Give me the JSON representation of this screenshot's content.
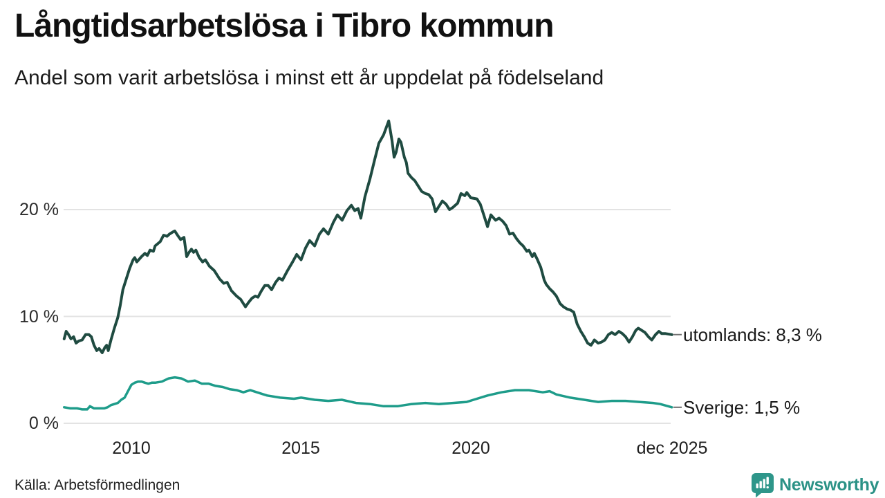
{
  "header": {
    "title": "Långtidsarbetslösa i Tibro kommun",
    "subtitle": "Andel som varit arbetslösa i minst ett år uppdelat på födelseland"
  },
  "source": {
    "text": "Källa: Arbetsförmedlingen"
  },
  "branding": {
    "name": "Newsworthy",
    "brand_color": "#2e968a"
  },
  "chart_data": {
    "type": "line",
    "title": "Långtidsarbetslösa i Tibro kommun",
    "subtitle": "Andel som varit arbetslösa i minst ett år uppdelat på födelseland",
    "xlabel": "",
    "ylabel": "",
    "xlim": [
      2008.0,
      2025.95
    ],
    "ylim": [
      0,
      29.3
    ],
    "grid": true,
    "legend_position": "right-end-labels",
    "y_ticks": [
      {
        "label": "0 %",
        "value": 0
      },
      {
        "label": "10 %",
        "value": 10
      },
      {
        "label": "20 %",
        "value": 20
      }
    ],
    "x_ticks": [
      {
        "label": "2010",
        "year": 2010
      },
      {
        "label": "2015",
        "year": 2015
      },
      {
        "label": "2020",
        "year": 2020
      },
      {
        "label": "dec 2025",
        "year": 2025.92
      }
    ],
    "series": [
      {
        "name": "utomlands",
        "label": "utomlands: 8,3 %",
        "color": "#1f4b41",
        "width": 4,
        "last_value": 8.3,
        "points": [
          [
            2008.02,
            7.9
          ],
          [
            2008.08,
            8.6
          ],
          [
            2008.15,
            8.3
          ],
          [
            2008.22,
            7.9
          ],
          [
            2008.3,
            8.1
          ],
          [
            2008.37,
            7.5
          ],
          [
            2008.45,
            7.7
          ],
          [
            2008.55,
            7.8
          ],
          [
            2008.65,
            8.3
          ],
          [
            2008.75,
            8.3
          ],
          [
            2008.82,
            8.1
          ],
          [
            2008.9,
            7.3
          ],
          [
            2008.98,
            6.8
          ],
          [
            2009.05,
            7.0
          ],
          [
            2009.14,
            6.6
          ],
          [
            2009.22,
            7.1
          ],
          [
            2009.27,
            7.3
          ],
          [
            2009.32,
            6.8
          ],
          [
            2009.4,
            7.8
          ],
          [
            2009.5,
            8.9
          ],
          [
            2009.6,
            9.9
          ],
          [
            2009.67,
            11.0
          ],
          [
            2009.75,
            12.5
          ],
          [
            2009.85,
            13.5
          ],
          [
            2009.95,
            14.5
          ],
          [
            2010.05,
            15.3
          ],
          [
            2010.1,
            15.5
          ],
          [
            2010.16,
            15.1
          ],
          [
            2010.3,
            15.6
          ],
          [
            2010.4,
            15.9
          ],
          [
            2010.47,
            15.7
          ],
          [
            2010.55,
            16.2
          ],
          [
            2010.65,
            16.1
          ],
          [
            2010.7,
            16.6
          ],
          [
            2010.85,
            17.0
          ],
          [
            2010.95,
            17.6
          ],
          [
            2011.05,
            17.5
          ],
          [
            2011.12,
            17.7
          ],
          [
            2011.22,
            17.9
          ],
          [
            2011.28,
            18.0
          ],
          [
            2011.36,
            17.6
          ],
          [
            2011.45,
            17.2
          ],
          [
            2011.55,
            17.4
          ],
          [
            2011.63,
            15.6
          ],
          [
            2011.7,
            16.0
          ],
          [
            2011.77,
            16.3
          ],
          [
            2011.83,
            16.0
          ],
          [
            2011.9,
            16.2
          ],
          [
            2012.0,
            15.5
          ],
          [
            2012.1,
            15.1
          ],
          [
            2012.18,
            15.3
          ],
          [
            2012.3,
            14.7
          ],
          [
            2012.44,
            14.3
          ],
          [
            2012.6,
            13.5
          ],
          [
            2012.72,
            13.1
          ],
          [
            2012.82,
            13.2
          ],
          [
            2012.95,
            12.4
          ],
          [
            2013.1,
            11.9
          ],
          [
            2013.22,
            11.6
          ],
          [
            2013.36,
            10.9
          ],
          [
            2013.45,
            11.3
          ],
          [
            2013.55,
            11.7
          ],
          [
            2013.65,
            11.9
          ],
          [
            2013.73,
            11.8
          ],
          [
            2013.83,
            12.4
          ],
          [
            2013.93,
            12.9
          ],
          [
            2014.03,
            12.9
          ],
          [
            2014.13,
            12.5
          ],
          [
            2014.25,
            13.2
          ],
          [
            2014.35,
            13.6
          ],
          [
            2014.45,
            13.4
          ],
          [
            2014.6,
            14.3
          ],
          [
            2014.75,
            15.1
          ],
          [
            2014.87,
            15.8
          ],
          [
            2015.0,
            15.3
          ],
          [
            2015.13,
            16.4
          ],
          [
            2015.25,
            17.1
          ],
          [
            2015.4,
            16.6
          ],
          [
            2015.54,
            17.7
          ],
          [
            2015.66,
            18.2
          ],
          [
            2015.8,
            17.7
          ],
          [
            2015.95,
            18.8
          ],
          [
            2016.07,
            19.5
          ],
          [
            2016.21,
            19.0
          ],
          [
            2016.35,
            19.9
          ],
          [
            2016.48,
            20.4
          ],
          [
            2016.58,
            19.9
          ],
          [
            2016.68,
            20.1
          ],
          [
            2016.76,
            19.2
          ],
          [
            2016.88,
            21.2
          ],
          [
            2017.03,
            22.9
          ],
          [
            2017.17,
            24.7
          ],
          [
            2017.29,
            26.2
          ],
          [
            2017.43,
            27.0
          ],
          [
            2017.58,
            28.3
          ],
          [
            2017.68,
            26.4
          ],
          [
            2017.74,
            24.9
          ],
          [
            2017.8,
            25.4
          ],
          [
            2017.88,
            26.6
          ],
          [
            2017.94,
            26.3
          ],
          [
            2018.04,
            24.9
          ],
          [
            2018.1,
            24.4
          ],
          [
            2018.15,
            23.4
          ],
          [
            2018.25,
            23.0
          ],
          [
            2018.35,
            22.7
          ],
          [
            2018.55,
            21.7
          ],
          [
            2018.66,
            21.5
          ],
          [
            2018.76,
            21.4
          ],
          [
            2018.86,
            21.0
          ],
          [
            2018.96,
            19.8
          ],
          [
            2019.06,
            20.3
          ],
          [
            2019.16,
            20.8
          ],
          [
            2019.27,
            20.5
          ],
          [
            2019.37,
            20.0
          ],
          [
            2019.47,
            20.2
          ],
          [
            2019.61,
            20.6
          ],
          [
            2019.71,
            21.5
          ],
          [
            2019.82,
            21.3
          ],
          [
            2019.88,
            21.6
          ],
          [
            2020.0,
            21.1
          ],
          [
            2020.18,
            21.0
          ],
          [
            2020.28,
            20.5
          ],
          [
            2020.38,
            19.5
          ],
          [
            2020.49,
            18.4
          ],
          [
            2020.59,
            19.5
          ],
          [
            2020.73,
            19.0
          ],
          [
            2020.83,
            19.2
          ],
          [
            2020.94,
            18.9
          ],
          [
            2021.04,
            18.5
          ],
          [
            2021.14,
            17.7
          ],
          [
            2021.24,
            17.8
          ],
          [
            2021.34,
            17.3
          ],
          [
            2021.44,
            16.9
          ],
          [
            2021.54,
            16.6
          ],
          [
            2021.65,
            16.1
          ],
          [
            2021.71,
            16.2
          ],
          [
            2021.81,
            15.6
          ],
          [
            2021.87,
            15.9
          ],
          [
            2021.95,
            15.4
          ],
          [
            2022.06,
            14.6
          ],
          [
            2022.16,
            13.4
          ],
          [
            2022.22,
            13.0
          ],
          [
            2022.32,
            12.6
          ],
          [
            2022.42,
            12.3
          ],
          [
            2022.52,
            11.9
          ],
          [
            2022.63,
            11.2
          ],
          [
            2022.73,
            10.9
          ],
          [
            2022.83,
            10.7
          ],
          [
            2022.93,
            10.6
          ],
          [
            2023.03,
            10.4
          ],
          [
            2023.13,
            9.3
          ],
          [
            2023.24,
            8.6
          ],
          [
            2023.34,
            8.1
          ],
          [
            2023.44,
            7.5
          ],
          [
            2023.54,
            7.3
          ],
          [
            2023.64,
            7.8
          ],
          [
            2023.75,
            7.5
          ],
          [
            2023.85,
            7.6
          ],
          [
            2023.95,
            7.8
          ],
          [
            2024.05,
            8.3
          ],
          [
            2024.15,
            8.5
          ],
          [
            2024.25,
            8.3
          ],
          [
            2024.36,
            8.6
          ],
          [
            2024.46,
            8.4
          ],
          [
            2024.56,
            8.1
          ],
          [
            2024.66,
            7.6
          ],
          [
            2024.76,
            8.1
          ],
          [
            2024.86,
            8.7
          ],
          [
            2024.93,
            8.9
          ],
          [
            2025.03,
            8.7
          ],
          [
            2025.13,
            8.5
          ],
          [
            2025.23,
            8.1
          ],
          [
            2025.33,
            7.8
          ],
          [
            2025.44,
            8.3
          ],
          [
            2025.54,
            8.6
          ],
          [
            2025.62,
            8.4
          ],
          [
            2025.72,
            8.4
          ],
          [
            2025.92,
            8.3
          ]
        ]
      },
      {
        "name": "Sverige",
        "label": "Sverige: 1,5 %",
        "color": "#1e9c8a",
        "width": 3.5,
        "last_value": 1.5,
        "points": [
          [
            2008.02,
            1.5
          ],
          [
            2008.2,
            1.4
          ],
          [
            2008.4,
            1.4
          ],
          [
            2008.55,
            1.3
          ],
          [
            2008.7,
            1.3
          ],
          [
            2008.78,
            1.6
          ],
          [
            2008.9,
            1.4
          ],
          [
            2009.1,
            1.4
          ],
          [
            2009.2,
            1.4
          ],
          [
            2009.3,
            1.5
          ],
          [
            2009.4,
            1.7
          ],
          [
            2009.5,
            1.8
          ],
          [
            2009.6,
            1.9
          ],
          [
            2009.7,
            2.2
          ],
          [
            2009.8,
            2.4
          ],
          [
            2009.9,
            3.0
          ],
          [
            2010.0,
            3.6
          ],
          [
            2010.1,
            3.8
          ],
          [
            2010.2,
            3.9
          ],
          [
            2010.3,
            3.9
          ],
          [
            2010.4,
            3.8
          ],
          [
            2010.5,
            3.7
          ],
          [
            2010.6,
            3.8
          ],
          [
            2010.7,
            3.8
          ],
          [
            2010.9,
            3.9
          ],
          [
            2011.1,
            4.2
          ],
          [
            2011.28,
            4.3
          ],
          [
            2011.47,
            4.2
          ],
          [
            2011.67,
            3.9
          ],
          [
            2011.87,
            4.0
          ],
          [
            2012.08,
            3.7
          ],
          [
            2012.28,
            3.7
          ],
          [
            2012.48,
            3.5
          ],
          [
            2012.69,
            3.4
          ],
          [
            2012.89,
            3.2
          ],
          [
            2013.1,
            3.1
          ],
          [
            2013.3,
            2.9
          ],
          [
            2013.5,
            3.1
          ],
          [
            2013.7,
            2.9
          ],
          [
            2013.9,
            2.7
          ],
          [
            2014.0,
            2.6
          ],
          [
            2014.38,
            2.4
          ],
          [
            2014.79,
            2.3
          ],
          [
            2015.0,
            2.4
          ],
          [
            2015.4,
            2.2
          ],
          [
            2015.8,
            2.1
          ],
          [
            2016.2,
            2.2
          ],
          [
            2016.62,
            1.9
          ],
          [
            2017.03,
            1.8
          ],
          [
            2017.43,
            1.6
          ],
          [
            2017.84,
            1.6
          ],
          [
            2018.25,
            1.8
          ],
          [
            2018.66,
            1.9
          ],
          [
            2019.06,
            1.8
          ],
          [
            2019.47,
            1.9
          ],
          [
            2019.88,
            2.0
          ],
          [
            2020.08,
            2.2
          ],
          [
            2020.49,
            2.6
          ],
          [
            2020.9,
            2.9
          ],
          [
            2021.3,
            3.1
          ],
          [
            2021.71,
            3.1
          ],
          [
            2022.12,
            2.9
          ],
          [
            2022.32,
            3.0
          ],
          [
            2022.52,
            2.7
          ],
          [
            2022.93,
            2.4
          ],
          [
            2023.34,
            2.2
          ],
          [
            2023.75,
            2.0
          ],
          [
            2024.15,
            2.1
          ],
          [
            2024.56,
            2.1
          ],
          [
            2024.96,
            2.0
          ],
          [
            2025.37,
            1.9
          ],
          [
            2025.58,
            1.8
          ],
          [
            2025.92,
            1.5
          ]
        ]
      }
    ]
  }
}
